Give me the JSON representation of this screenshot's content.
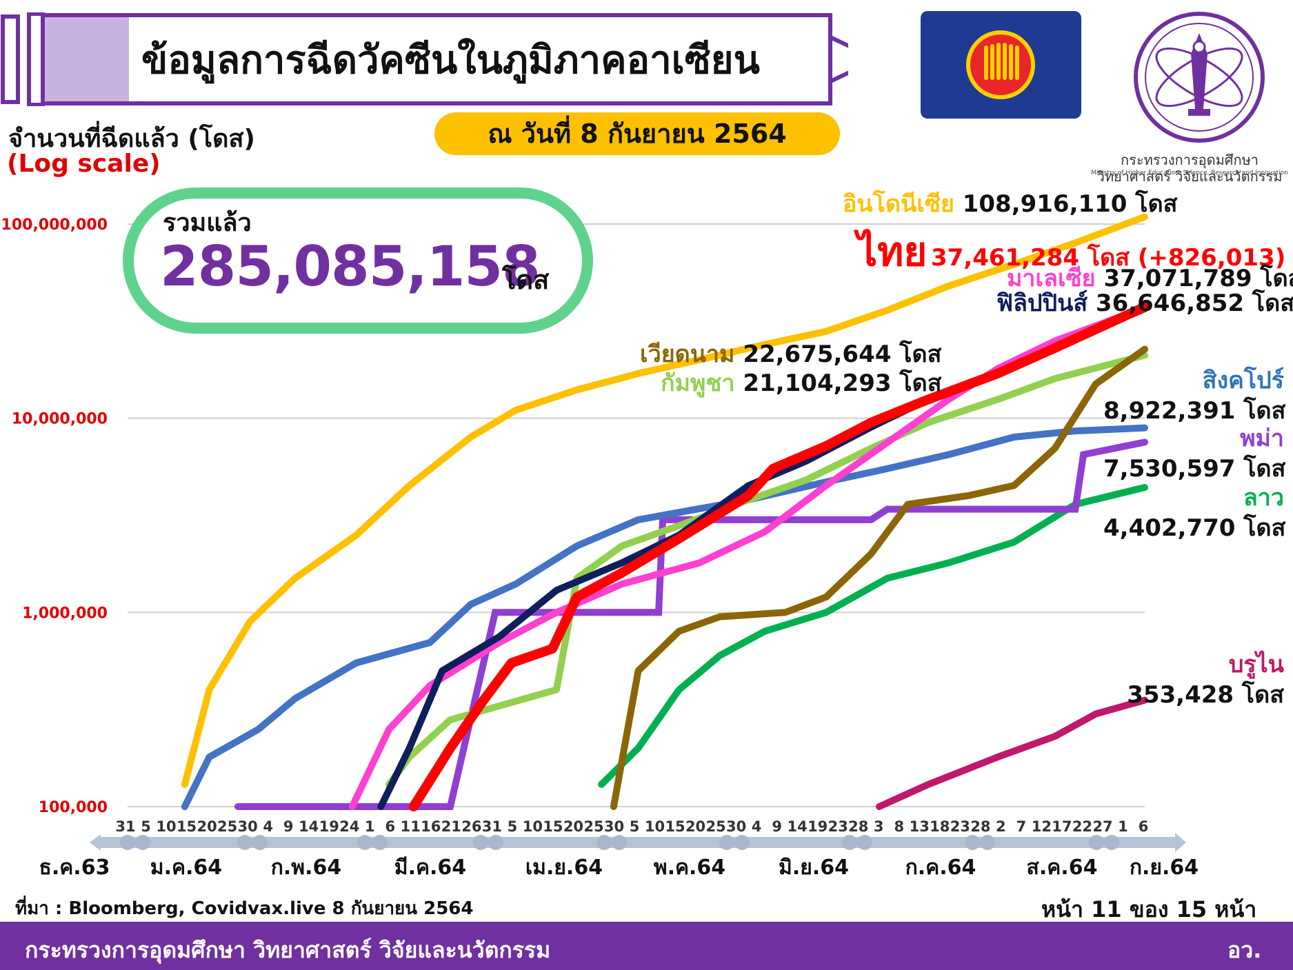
{
  "header": {
    "title": "ข้อมูลการฉีดวัคซีนในภูมิภาคอาเซียน",
    "date": "ณ วันที่ 8 กันยายน 2564",
    "ministry_th": "กระทรวงการอุดมศึกษา วิทยาศาสตร์ วิจัยและนวัตกรรม",
    "ministry_en": "Ministry of Higher Education, Science, Research and Innovation"
  },
  "colors": {
    "header_purple": "#7030a0",
    "pill_yellow": "#ffc000",
    "total_green": "#5fd38b",
    "flag_blue": "#1f3a93",
    "flag_red": "#e8262a",
    "flag_yellow": "#ffd100"
  },
  "icons": [
    "syringe-icon",
    "asean-flag-icon",
    "ministry-logo-icon"
  ],
  "total": {
    "label": "รวมแล้ว",
    "value": "285,085,158",
    "unit": "โดส"
  },
  "chart_data": {
    "type": "line",
    "ylabel": "จำนวนที่ฉีดแล้ว (โดส)",
    "yscale_note": "(Log scale)",
    "yscale": "log",
    "ylim": [
      100000,
      100000000
    ],
    "yticks": [
      {
        "value": 100000,
        "label": "100,000"
      },
      {
        "value": 1000000,
        "label": "1,000,000"
      },
      {
        "value": 10000000,
        "label": "10,000,000"
      },
      {
        "value": 100000000,
        "label": "100,000,000"
      }
    ],
    "grid": true,
    "x_day_ticks": [
      "31",
      "5",
      "10",
      "15",
      "20",
      "25",
      "30",
      "4",
      "9",
      "14",
      "19",
      "24",
      "1",
      "6",
      "11",
      "16",
      "21",
      "26",
      "31",
      "5",
      "10",
      "15",
      "20",
      "25",
      "30",
      "5",
      "10",
      "15",
      "20",
      "25",
      "30",
      "4",
      "9",
      "14",
      "19",
      "23",
      "28",
      "3",
      "8",
      "13",
      "18",
      "23",
      "28",
      "2",
      "7",
      "12",
      "17",
      "22",
      "27",
      "1",
      "6"
    ],
    "x_month_labels": [
      "ธ.ค.63",
      "ม.ค.64",
      "ก.พ.64",
      "มี.ค.64",
      "เม.ย.64",
      "พ.ค.64",
      "มิ.ย.64",
      "ก.ค.64",
      "ส.ค.64",
      "ก.ย.64"
    ],
    "series": [
      {
        "name": "อินโดนีเซีย",
        "label": "108,916,110 โดส",
        "color": "#ffc000",
        "points": [
          [
            "2021-01-14",
            130000
          ],
          [
            "2021-01-20",
            400000
          ],
          [
            "2021-01-30",
            900000
          ],
          [
            "2021-02-10",
            1500000
          ],
          [
            "2021-02-25",
            2500000
          ],
          [
            "2021-03-10",
            4500000
          ],
          [
            "2021-03-25",
            8000000
          ],
          [
            "2021-04-05",
            11000000
          ],
          [
            "2021-04-20",
            14000000
          ],
          [
            "2021-05-05",
            17000000
          ],
          [
            "2021-05-20",
            20000000
          ],
          [
            "2021-06-05",
            24000000
          ],
          [
            "2021-06-20",
            28000000
          ],
          [
            "2021-07-05",
            36000000
          ],
          [
            "2021-07-20",
            48000000
          ],
          [
            "2021-08-05",
            62000000
          ],
          [
            "2021-08-20",
            80000000
          ],
          [
            "2021-09-06",
            108916110
          ]
        ]
      },
      {
        "name": "ไทย",
        "label": "37,461,284 โดส (+826,013)",
        "color": "#ff0000",
        "points": [
          [
            "2021-03-11",
            100000
          ],
          [
            "2021-03-20",
            200000
          ],
          [
            "2021-03-28",
            350000
          ],
          [
            "2021-04-04",
            550000
          ],
          [
            "2021-04-14",
            650000
          ],
          [
            "2021-04-20",
            1200000
          ],
          [
            "2021-05-01",
            1600000
          ],
          [
            "2021-05-15",
            2400000
          ],
          [
            "2021-06-01",
            4000000
          ],
          [
            "2021-06-07",
            5500000
          ],
          [
            "2021-06-20",
            7200000
          ],
          [
            "2021-07-01",
            9500000
          ],
          [
            "2021-07-15",
            12500000
          ],
          [
            "2021-08-01",
            17000000
          ],
          [
            "2021-08-15",
            23000000
          ],
          [
            "2021-09-06",
            37461284
          ]
        ]
      },
      {
        "name": "มาเลเซีย",
        "label": "37,071,789 โดส",
        "color": "#ff40d0",
        "points": [
          [
            "2021-02-24",
            100000
          ],
          [
            "2021-03-05",
            250000
          ],
          [
            "2021-03-15",
            420000
          ],
          [
            "2021-04-01",
            700000
          ],
          [
            "2021-04-15",
            1000000
          ],
          [
            "2021-05-01",
            1400000
          ],
          [
            "2021-05-20",
            1800000
          ],
          [
            "2021-06-05",
            2600000
          ],
          [
            "2021-06-20",
            4500000
          ],
          [
            "2021-07-05",
            7500000
          ],
          [
            "2021-07-20",
            12500000
          ],
          [
            "2021-08-01",
            18000000
          ],
          [
            "2021-08-15",
            25000000
          ],
          [
            "2021-09-06",
            37071789
          ]
        ]
      },
      {
        "name": "ฟิลิปปินส์",
        "label": "36,646,852 โดส",
        "color": "#0f1f5c",
        "points": [
          [
            "2021-03-03",
            100000
          ],
          [
            "2021-03-10",
            200000
          ],
          [
            "2021-03-18",
            500000
          ],
          [
            "2021-04-01",
            750000
          ],
          [
            "2021-04-15",
            1300000
          ],
          [
            "2021-05-01",
            1800000
          ],
          [
            "2021-05-15",
            2500000
          ],
          [
            "2021-06-01",
            4500000
          ],
          [
            "2021-06-15",
            6000000
          ],
          [
            "2021-07-01",
            9000000
          ],
          [
            "2021-07-15",
            12500000
          ],
          [
            "2021-08-01",
            17000000
          ],
          [
            "2021-08-15",
            23000000
          ],
          [
            "2021-09-06",
            36646852
          ]
        ]
      },
      {
        "name": "เวียดนาม",
        "label": "22,675,644 โดส",
        "color": "#8b6508",
        "points": [
          [
            "2021-04-29",
            100000
          ],
          [
            "2021-05-05",
            500000
          ],
          [
            "2021-05-15",
            800000
          ],
          [
            "2021-05-25",
            950000
          ],
          [
            "2021-06-10",
            1000000
          ],
          [
            "2021-06-20",
            1200000
          ],
          [
            "2021-07-01",
            2000000
          ],
          [
            "2021-07-10",
            3600000
          ],
          [
            "2021-07-25",
            4000000
          ],
          [
            "2021-08-05",
            4500000
          ],
          [
            "2021-08-15",
            7000000
          ],
          [
            "2021-08-25",
            15000000
          ],
          [
            "2021-09-06",
            22675644
          ]
        ]
      },
      {
        "name": "กัมพูชา",
        "label": "21,104,293 โดส",
        "color": "#92d050",
        "points": [
          [
            "2021-03-05",
            130000
          ],
          [
            "2021-03-10",
            180000
          ],
          [
            "2021-03-20",
            280000
          ],
          [
            "2021-04-15",
            400000
          ],
          [
            "2021-04-20",
            1500000
          ],
          [
            "2021-05-01",
            2200000
          ],
          [
            "2021-05-15",
            2800000
          ],
          [
            "2021-06-01",
            3800000
          ],
          [
            "2021-06-15",
            4800000
          ],
          [
            "2021-07-01",
            7000000
          ],
          [
            "2021-07-15",
            9500000
          ],
          [
            "2021-08-01",
            12500000
          ],
          [
            "2021-08-15",
            16000000
          ],
          [
            "2021-09-06",
            21104293
          ]
        ]
      },
      {
        "name": "สิงคโปร์",
        "label": "8,922,391 โดส",
        "color": "#4472c4",
        "points": [
          [
            "2021-01-14",
            100000
          ],
          [
            "2021-01-20",
            180000
          ],
          [
            "2021-02-01",
            250000
          ],
          [
            "2021-02-10",
            360000
          ],
          [
            "2021-02-25",
            550000
          ],
          [
            "2021-03-15",
            700000
          ],
          [
            "2021-03-25",
            1100000
          ],
          [
            "2021-04-05",
            1400000
          ],
          [
            "2021-04-20",
            2200000
          ],
          [
            "2021-05-05",
            3000000
          ],
          [
            "2021-06-01",
            3800000
          ],
          [
            "2021-06-20",
            4700000
          ],
          [
            "2021-07-05",
            5500000
          ],
          [
            "2021-07-20",
            6500000
          ],
          [
            "2021-08-05",
            8000000
          ],
          [
            "2021-08-20",
            8600000
          ],
          [
            "2021-09-06",
            8922391
          ]
        ]
      },
      {
        "name": "พม่า",
        "label": "7,530,597 โดส",
        "color": "#8f3fd1",
        "points": [
          [
            "2021-01-27",
            100000
          ],
          [
            "2021-03-20",
            100000
          ],
          [
            "2021-03-31",
            1000000
          ],
          [
            "2021-05-10",
            1000000
          ],
          [
            "2021-05-11",
            3000000
          ],
          [
            "2021-07-01",
            3000000
          ],
          [
            "2021-07-05",
            3400000
          ],
          [
            "2021-08-20",
            3400000
          ],
          [
            "2021-08-22",
            6500000
          ],
          [
            "2021-09-06",
            7530597
          ]
        ]
      },
      {
        "name": "ลาว",
        "label": "4,402,770 โดส",
        "color": "#00b050",
        "points": [
          [
            "2021-04-26",
            130000
          ],
          [
            "2021-05-05",
            200000
          ],
          [
            "2021-05-15",
            400000
          ],
          [
            "2021-05-25",
            600000
          ],
          [
            "2021-06-05",
            800000
          ],
          [
            "2021-06-20",
            1000000
          ],
          [
            "2021-07-05",
            1500000
          ],
          [
            "2021-07-20",
            1800000
          ],
          [
            "2021-08-05",
            2300000
          ],
          [
            "2021-08-20",
            3600000
          ],
          [
            "2021-09-06",
            4402770
          ]
        ]
      },
      {
        "name": "บรูไน",
        "label": "353,428 โดส",
        "color": "#c0186a",
        "points": [
          [
            "2021-07-03",
            100000
          ],
          [
            "2021-07-15",
            130000
          ],
          [
            "2021-08-01",
            180000
          ],
          [
            "2021-08-15",
            230000
          ],
          [
            "2021-08-25",
            300000
          ],
          [
            "2021-09-06",
            353428
          ]
        ]
      }
    ]
  },
  "footer": {
    "source": "ที่มา : Bloomberg, Covidvax.live 8 กันยายน 2564",
    "page": "หน้า 11 ของ 15 หน้า",
    "ministry": "กระทรวงการอุดมศึกษา วิทยาศาสตร์ วิจัยและนวัตกรรม",
    "abbr": "อว."
  }
}
